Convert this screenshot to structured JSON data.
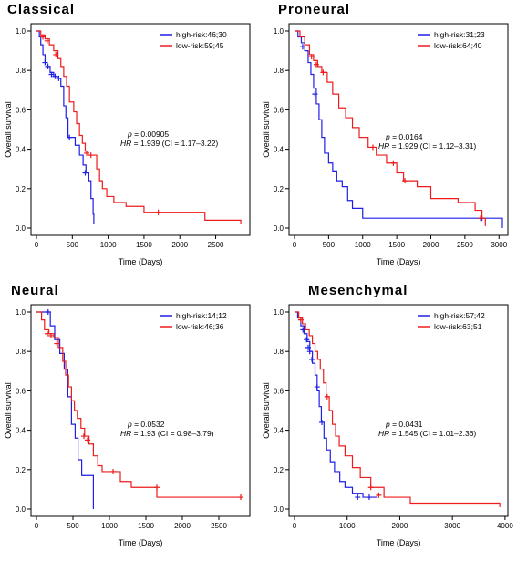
{
  "colors": {
    "high_risk": "#1f1fe6",
    "low_risk": "#ee1c1c",
    "axis": "#000000"
  },
  "chart_data": [
    {
      "type": "line",
      "title": "Classical",
      "xlabel": "Time (Days)",
      "ylabel": "Overall survival",
      "xlim": [
        0,
        2900
      ],
      "ylim": [
        0,
        1
      ],
      "xticks": [
        0,
        500,
        1000,
        1500,
        2000,
        2500
      ],
      "yticks": [
        0.0,
        0.2,
        0.4,
        0.6,
        0.8,
        1.0
      ],
      "legend_position": "top-right",
      "stats": {
        "p_label": "p",
        "p_value": " = 0.00905",
        "hr_label": "HR",
        "hr_value": " = 1.939  (CI = 1.17–3.22)"
      },
      "series": [
        {
          "name": "high-risk:46;30",
          "color": "#1f1fe6",
          "points": [
            [
              0,
              1
            ],
            [
              40,
              0.97
            ],
            [
              60,
              0.93
            ],
            [
              90,
              0.88
            ],
            [
              120,
              0.84
            ],
            [
              150,
              0.82
            ],
            [
              190,
              0.79
            ],
            [
              240,
              0.77
            ],
            [
              290,
              0.76
            ],
            [
              340,
              0.72
            ],
            [
              380,
              0.62
            ],
            [
              410,
              0.56
            ],
            [
              440,
              0.46
            ],
            [
              490,
              0.46
            ],
            [
              540,
              0.42
            ],
            [
              600,
              0.37
            ],
            [
              650,
              0.32
            ],
            [
              690,
              0.28
            ],
            [
              730,
              0.24
            ],
            [
              760,
              0.15
            ],
            [
              790,
              0.07
            ],
            [
              800,
              0.02
            ]
          ],
          "censors": [
            [
              120,
              0.84
            ],
            [
              160,
              0.82
            ],
            [
              210,
              0.78
            ],
            [
              260,
              0.77
            ],
            [
              310,
              0.76
            ],
            [
              460,
              0.46
            ],
            [
              680,
              0.28
            ]
          ]
        },
        {
          "name": "low-risk:59;45",
          "color": "#ee1c1c",
          "points": [
            [
              0,
              1
            ],
            [
              60,
              0.98
            ],
            [
              120,
              0.96
            ],
            [
              180,
              0.93
            ],
            [
              240,
              0.9
            ],
            [
              300,
              0.86
            ],
            [
              340,
              0.82
            ],
            [
              380,
              0.77
            ],
            [
              420,
              0.72
            ],
            [
              460,
              0.64
            ],
            [
              520,
              0.59
            ],
            [
              560,
              0.53
            ],
            [
              600,
              0.47
            ],
            [
              640,
              0.43
            ],
            [
              680,
              0.39
            ],
            [
              720,
              0.37
            ],
            [
              800,
              0.37
            ],
            [
              840,
              0.3
            ],
            [
              880,
              0.24
            ],
            [
              920,
              0.2
            ],
            [
              980,
              0.16
            ],
            [
              1080,
              0.13
            ],
            [
              1250,
              0.11
            ],
            [
              1500,
              0.08
            ],
            [
              2350,
              0.04
            ],
            [
              2850,
              0.02
            ]
          ],
          "censors": [
            [
              90,
              0.97
            ],
            [
              150,
              0.95
            ],
            [
              270,
              0.88
            ],
            [
              700,
              0.38
            ],
            [
              760,
              0.37
            ],
            [
              1700,
              0.08
            ]
          ]
        }
      ]
    },
    {
      "type": "line",
      "title": "Proneural",
      "xlabel": "Time (Days)",
      "ylabel": "Overall survival",
      "xlim": [
        0,
        3050
      ],
      "ylim": [
        0,
        1
      ],
      "xticks": [
        0,
        500,
        1000,
        1500,
        2000,
        2500,
        3000
      ],
      "yticks": [
        0.0,
        0.2,
        0.4,
        0.6,
        0.8,
        1.0
      ],
      "legend_position": "top-right",
      "stats": {
        "p_label": "p",
        "p_value": " = 0.0164",
        "hr_label": "HR",
        "hr_value": " = 1.929  (CI = 1.12–3.31)"
      },
      "series": [
        {
          "name": "high-risk:31;23",
          "color": "#1f1fe6",
          "points": [
            [
              0,
              1
            ],
            [
              50,
              0.97
            ],
            [
              100,
              0.94
            ],
            [
              150,
              0.9
            ],
            [
              200,
              0.84
            ],
            [
              240,
              0.78
            ],
            [
              280,
              0.71
            ],
            [
              320,
              0.63
            ],
            [
              360,
              0.55
            ],
            [
              400,
              0.46
            ],
            [
              440,
              0.38
            ],
            [
              500,
              0.33
            ],
            [
              560,
              0.29
            ],
            [
              620,
              0.24
            ],
            [
              700,
              0.21
            ],
            [
              780,
              0.14
            ],
            [
              850,
              0.1
            ],
            [
              1000,
              0.05
            ],
            [
              3000,
              0.05
            ],
            [
              3050,
              0
            ]
          ],
          "censors": [
            [
              120,
              0.92
            ],
            [
              300,
              0.68
            ],
            [
              2750,
              0.05
            ]
          ]
        },
        {
          "name": "low-risk:64;40",
          "color": "#ee1c1c",
          "points": [
            [
              0,
              1
            ],
            [
              80,
              0.97
            ],
            [
              150,
              0.93
            ],
            [
              220,
              0.88
            ],
            [
              280,
              0.85
            ],
            [
              340,
              0.82
            ],
            [
              400,
              0.79
            ],
            [
              480,
              0.74
            ],
            [
              560,
              0.68
            ],
            [
              650,
              0.61
            ],
            [
              750,
              0.56
            ],
            [
              850,
              0.51
            ],
            [
              950,
              0.46
            ],
            [
              1080,
              0.41
            ],
            [
              1200,
              0.37
            ],
            [
              1350,
              0.33
            ],
            [
              1500,
              0.28
            ],
            [
              1600,
              0.24
            ],
            [
              1800,
              0.21
            ],
            [
              2000,
              0.15
            ],
            [
              2400,
              0.13
            ],
            [
              2650,
              0.09
            ],
            [
              2750,
              0.05
            ],
            [
              2800,
              0.01
            ]
          ],
          "censors": [
            [
              250,
              0.87
            ],
            [
              320,
              0.83
            ],
            [
              420,
              0.79
            ],
            [
              1150,
              0.41
            ],
            [
              1450,
              0.33
            ],
            [
              1620,
              0.24
            ],
            [
              2730,
              0.05
            ]
          ]
        }
      ]
    },
    {
      "type": "line",
      "title": "Neural",
      "xlabel": "Time (Days)",
      "ylabel": "Overall survival",
      "xlim": [
        0,
        2850
      ],
      "ylim": [
        0,
        1
      ],
      "xticks": [
        0,
        500,
        1000,
        1500,
        2000,
        2500
      ],
      "yticks": [
        0.0,
        0.2,
        0.4,
        0.6,
        0.8,
        1.0
      ],
      "legend_position": "top-right",
      "stats": {
        "p_label": "p",
        "p_value": " = 0.0532",
        "hr_label": "HR",
        "hr_value": " = 1.93  (CI = 0.98–3.79)"
      },
      "series": [
        {
          "name": "high-risk:14;12",
          "color": "#1f1fe6",
          "points": [
            [
              0,
              1
            ],
            [
              170,
              1
            ],
            [
              190,
              0.93
            ],
            [
              250,
              0.86
            ],
            [
              320,
              0.79
            ],
            [
              380,
              0.71
            ],
            [
              430,
              0.57
            ],
            [
              480,
              0.43
            ],
            [
              530,
              0.36
            ],
            [
              570,
              0.25
            ],
            [
              620,
              0.17
            ],
            [
              760,
              0.17
            ],
            [
              780,
              0
            ]
          ],
          "censors": [
            [
              160,
              1
            ]
          ]
        },
        {
          "name": "low-risk:46;36",
          "color": "#ee1c1c",
          "points": [
            [
              0,
              1
            ],
            [
              70,
              0.96
            ],
            [
              110,
              0.91
            ],
            [
              170,
              0.89
            ],
            [
              240,
              0.87
            ],
            [
              300,
              0.82
            ],
            [
              360,
              0.75
            ],
            [
              400,
              0.68
            ],
            [
              440,
              0.62
            ],
            [
              480,
              0.55
            ],
            [
              520,
              0.5
            ],
            [
              560,
              0.46
            ],
            [
              610,
              0.41
            ],
            [
              660,
              0.37
            ],
            [
              720,
              0.33
            ],
            [
              780,
              0.27
            ],
            [
              840,
              0.22
            ],
            [
              900,
              0.19
            ],
            [
              1150,
              0.14
            ],
            [
              1300,
              0.11
            ],
            [
              1650,
              0.06
            ],
            [
              2800,
              0.06
            ]
          ],
          "censors": [
            [
              150,
              0.89
            ],
            [
              200,
              0.88
            ],
            [
              280,
              0.84
            ],
            [
              650,
              0.37
            ],
            [
              700,
              0.35
            ],
            [
              1050,
              0.19
            ],
            [
              1650,
              0.11
            ],
            [
              2800,
              0.06
            ]
          ]
        }
      ]
    },
    {
      "type": "line",
      "title": "Mesenchymal",
      "xlabel": "Time (Days)",
      "ylabel": "Overall survival",
      "xlim": [
        0,
        3950
      ],
      "ylim": [
        0,
        1
      ],
      "xticks": [
        0,
        1000,
        2000,
        3000,
        4000
      ],
      "yticks": [
        0.0,
        0.2,
        0.4,
        0.6,
        0.8,
        1.0
      ],
      "legend_position": "top-right",
      "stats": {
        "p_label": "p",
        "p_value": " = 0.0431",
        "hr_label": "HR",
        "hr_value": " = 1.545  (CI = 1.01–2.36)"
      },
      "series": [
        {
          "name": "high-risk:57;42",
          "color": "#1f1fe6",
          "points": [
            [
              0,
              1
            ],
            [
              60,
              0.97
            ],
            [
              120,
              0.93
            ],
            [
              180,
              0.89
            ],
            [
              240,
              0.85
            ],
            [
              290,
              0.8
            ],
            [
              340,
              0.74
            ],
            [
              390,
              0.68
            ],
            [
              430,
              0.6
            ],
            [
              470,
              0.52
            ],
            [
              510,
              0.44
            ],
            [
              560,
              0.36
            ],
            [
              610,
              0.3
            ],
            [
              680,
              0.24
            ],
            [
              760,
              0.19
            ],
            [
              860,
              0.14
            ],
            [
              960,
              0.11
            ],
            [
              1100,
              0.08
            ],
            [
              1300,
              0.06
            ],
            [
              1560,
              0.06
            ]
          ],
          "censors": [
            [
              160,
              0.91
            ],
            [
              230,
              0.86
            ],
            [
              260,
              0.82
            ],
            [
              290,
              0.8
            ],
            [
              330,
              0.76
            ],
            [
              430,
              0.62
            ],
            [
              520,
              0.44
            ],
            [
              1200,
              0.06
            ],
            [
              1420,
              0.06
            ]
          ]
        },
        {
          "name": "low-risk:63;51",
          "color": "#ee1c1c",
          "points": [
            [
              0,
              1
            ],
            [
              80,
              0.97
            ],
            [
              150,
              0.94
            ],
            [
              210,
              0.91
            ],
            [
              280,
              0.88
            ],
            [
              340,
              0.84
            ],
            [
              390,
              0.8
            ],
            [
              440,
              0.76
            ],
            [
              490,
              0.71
            ],
            [
              550,
              0.64
            ],
            [
              600,
              0.57
            ],
            [
              660,
              0.5
            ],
            [
              720,
              0.43
            ],
            [
              780,
              0.37
            ],
            [
              850,
              0.32
            ],
            [
              960,
              0.27
            ],
            [
              1100,
              0.21
            ],
            [
              1250,
              0.16
            ],
            [
              1450,
              0.11
            ],
            [
              1700,
              0.06
            ],
            [
              2200,
              0.03
            ],
            [
              3900,
              0.01
            ]
          ],
          "censors": [
            [
              120,
              0.96
            ],
            [
              620,
              0.57
            ],
            [
              1450,
              0.11
            ],
            [
              1600,
              0.07
            ]
          ]
        }
      ]
    }
  ]
}
